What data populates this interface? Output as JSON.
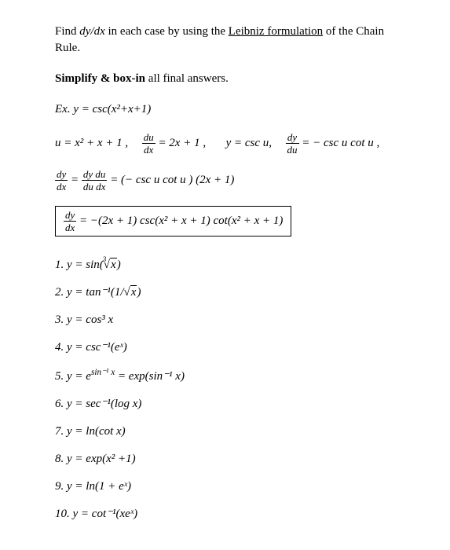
{
  "intro_prefix": "Find ",
  "intro_dydx": "dy/dx",
  "intro_mid": " in each case by using the ",
  "intro_link": "Leibniz formulation",
  "intro_suffix": " of the Chain Rule.",
  "instructions_bold": "Simplify & box-in",
  "instructions_rest": " all final answers.",
  "example_label": "Ex. y = csc(x²+x+1)",
  "ex_u_def": "u = x² + x + 1 ,",
  "frac_du": "du",
  "frac_dx": "dx",
  "ex_du_eq": " = 2x + 1 ,",
  "ex_y_def": "y = csc u,",
  "frac_dy": "dy",
  "ex_dydu_eq": " = − csc u  cot u ,",
  "frac_dy2": "dy",
  "frac_dx2": "dx",
  "frac_dy_du": "dy du",
  "frac_du_dx": "du dx",
  "ex_chain_eq": " = (− csc u cot u ) (2x + 1)",
  "boxed_result": " = −(2x + 1) csc(x² + x + 1) cot(x² + x + 1)",
  "p1_prefix": "1. y = sin(",
  "p1_root_index": "3",
  "p1_radicand": "x",
  "p1_suffix": ")",
  "p2_prefix": "2. y = tan⁻¹(1/",
  "p2_radicand": "x",
  "p2_suffix": ")",
  "p3": "3. y = cos³ x",
  "p4": "4. y = csc⁻¹(eˣ)",
  "p5_prefix": "5. y = e",
  "p5_exp": "sin⁻¹ x",
  "p5_suffix": " = exp(sin⁻¹ x)",
  "p6": "6. y = sec⁻¹(log x)",
  "p7": "7. y = ln(cot x)",
  "p8": "8. y = exp(x² +1)",
  "p9": "9. y = ln(1 + eˣ)",
  "p10": "10. y = cot⁻¹(xeˣ)"
}
